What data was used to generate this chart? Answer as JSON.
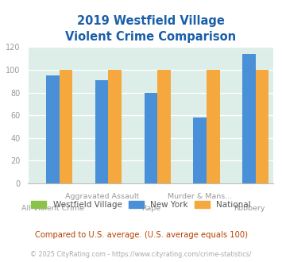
{
  "title": "2019 Westfield Village\nViolent Crime Comparison",
  "categories_row1": [
    "",
    "Aggravated Assault",
    "",
    "Murder & Mans...",
    ""
  ],
  "categories_row2": [
    "All Violent Crime",
    "",
    "Rape",
    "",
    "Robbery"
  ],
  "series": {
    "Westfield Village": [
      0,
      0,
      0,
      0,
      0
    ],
    "New York": [
      95,
      91,
      80,
      58,
      114
    ],
    "National": [
      100,
      100,
      100,
      100,
      100
    ]
  },
  "colors": {
    "Westfield Village": "#8bc34a",
    "New York": "#4a90d9",
    "National": "#f5a83e"
  },
  "ylim": [
    0,
    120
  ],
  "yticks": [
    0,
    20,
    40,
    60,
    80,
    100,
    120
  ],
  "background_color": "#ddeee8",
  "title_color": "#1a5fa8",
  "axis_label_color": "#999999",
  "legend_text_color": "#555555",
  "footer_text1": "Compared to U.S. average. (U.S. average equals 100)",
  "footer_text2": "© 2025 CityRating.com - https://www.cityrating.com/crime-statistics/",
  "footer_color1": "#b84000",
  "footer_color2": "#aaaaaa",
  "grid_color": "#ffffff",
  "bar_width": 0.27
}
